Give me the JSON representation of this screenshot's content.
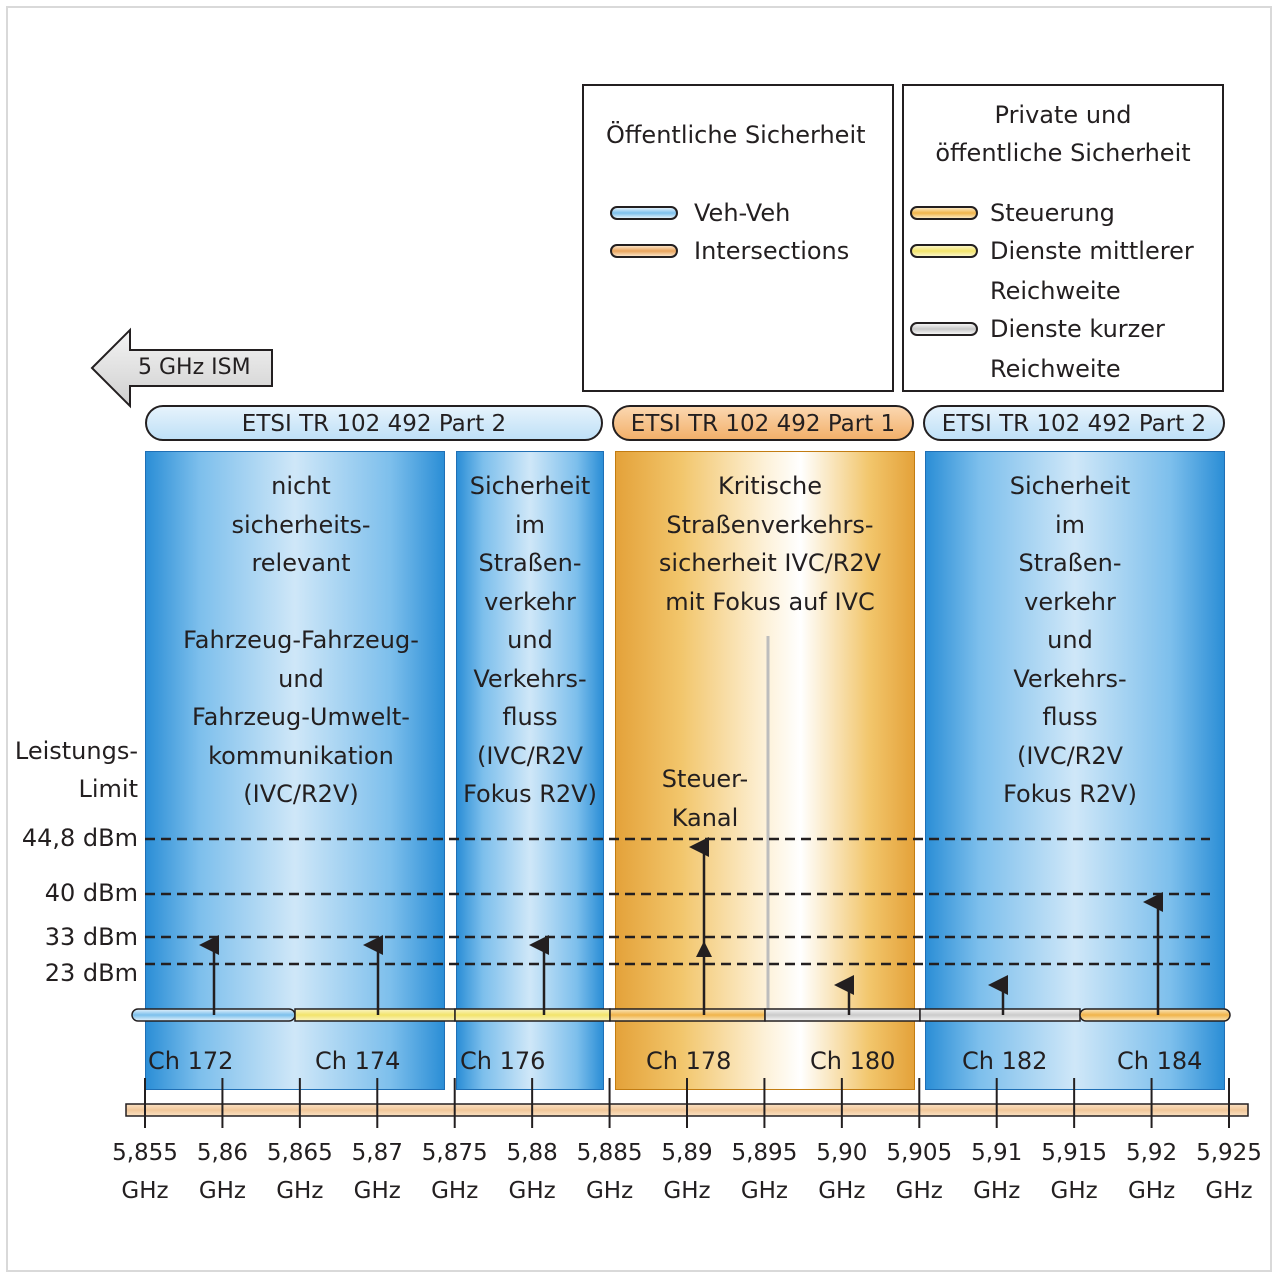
{
  "legend_public": {
    "title": "Öffentliche  Sicherheit",
    "items": [
      {
        "label": "Veh-Veh",
        "color": "#7cc0ec"
      },
      {
        "label": "Intersections",
        "color": "#e9a45c"
      }
    ]
  },
  "legend_private": {
    "title_line1": "Private und",
    "title_line2": "öffentliche Sicherheit",
    "items": [
      {
        "line1": "Steuerung",
        "line2": "",
        "color": "#f0b44a"
      },
      {
        "line1": "Dienste mittlerer",
        "line2": "Reichweite",
        "color": "#f2e36a"
      },
      {
        "line1": "Dienste kurzer",
        "line2": "Reichweite",
        "color": "#d0d0d0"
      }
    ]
  },
  "ism_arrow": {
    "label": "5 GHz ISM"
  },
  "etsi": [
    {
      "label": "ETSI TR 102 492 Part 2",
      "color": "#bfe0f7"
    },
    {
      "label": "ETSI TR 102 492 Part 1",
      "color": "#f2b06a"
    },
    {
      "label": "ETSI TR 102 492 Part 2",
      "color": "#bfe0f7"
    }
  ],
  "columns": [
    {
      "text": "nicht\nsicherheits-\nrelevant\n\nFahrzeug-Fahrzeug-\nund\nFahrzeug-Umwelt-\nkommunikation\n(IVC/R2V)"
    },
    {
      "text": "Sicherheit\nim\nStraßen-\nverkehr\nund\nVerkehrs-\nfluss\n(IVC/R2V\nFokus R2V)"
    },
    {
      "text": "Kritische\nStraßenverkehrs-\nsicherheit IVC/R2V\nmit Fokus auf IVC",
      "sub": "Steuer-\nKanal"
    },
    {
      "text": "Sicherheit\nim\nStraßen-\nverkehr\nund\nVerkehrs-\nfluss\n(IVC/R2V\nFokus R2V)"
    }
  ],
  "power": {
    "title_line1": "Leistungs-",
    "title_line2": "Limit",
    "levels": [
      "44,8 dBm",
      "40 dBm",
      "33 dBm",
      "23 dBm"
    ]
  },
  "channels": [
    "Ch 172",
    "Ch 174",
    "Ch 176",
    "Ch 178",
    "Ch 180",
    "Ch 182",
    "Ch 184"
  ],
  "freq_ticks": [
    {
      "value": "5,855",
      "unit": "GHz"
    },
    {
      "value": "5,86",
      "unit": "GHz"
    },
    {
      "value": "5,865",
      "unit": "GHz"
    },
    {
      "value": "5,87",
      "unit": "GHz"
    },
    {
      "value": "5,875",
      "unit": "GHz"
    },
    {
      "value": "5,88",
      "unit": "GHz"
    },
    {
      "value": "5,885",
      "unit": "GHz"
    },
    {
      "value": "5,89",
      "unit": "GHz"
    },
    {
      "value": "5,895",
      "unit": "GHz"
    },
    {
      "value": "5,90",
      "unit": "GHz"
    },
    {
      "value": "5,905",
      "unit": "GHz"
    },
    {
      "value": "5,91",
      "unit": "GHz"
    },
    {
      "value": "5,915",
      "unit": "GHz"
    },
    {
      "value": "5,92",
      "unit": "GHz"
    },
    {
      "value": "5,925",
      "unit": "GHz"
    }
  ]
}
